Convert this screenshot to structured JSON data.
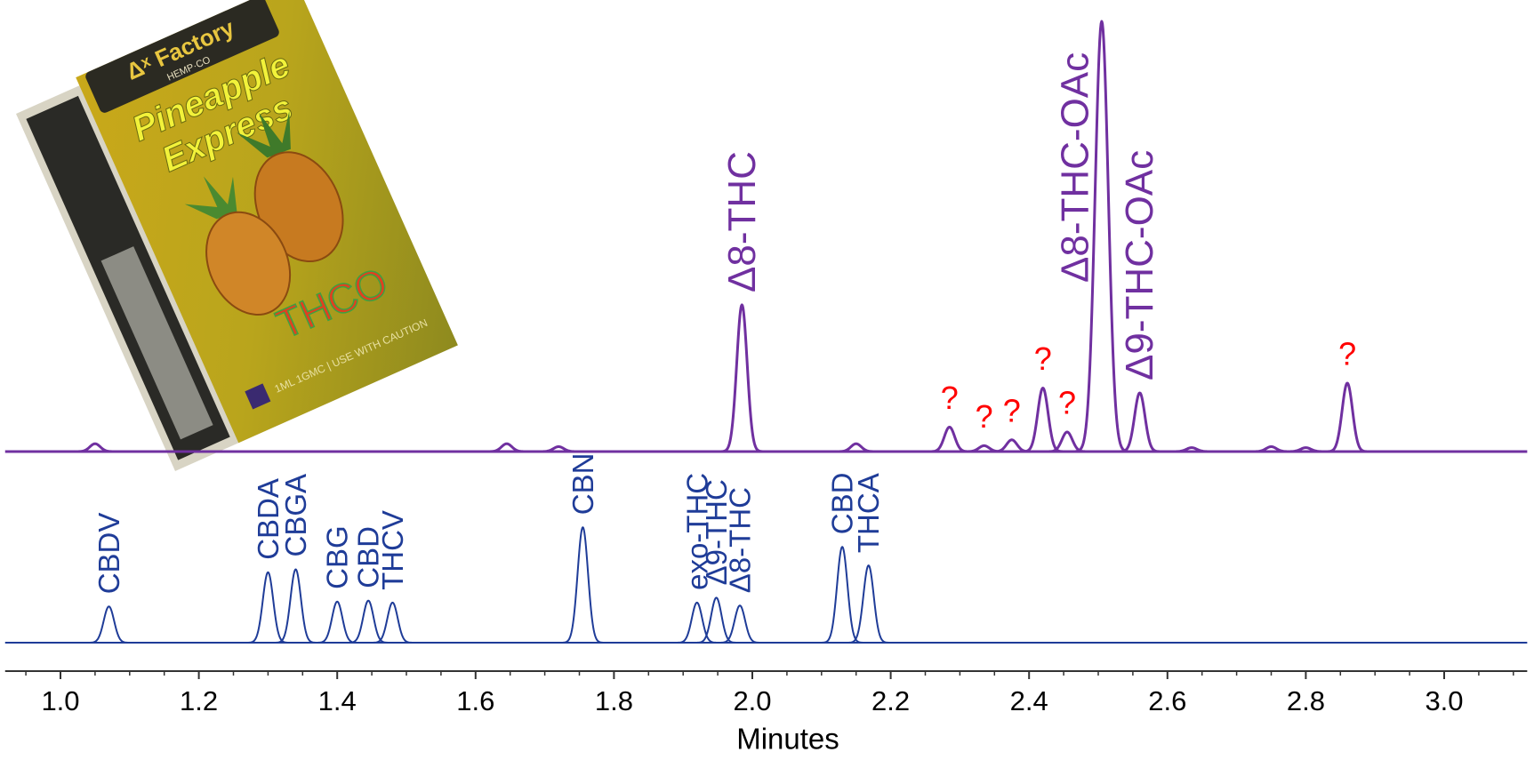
{
  "chart_data": {
    "type": "chromatogram",
    "x_label": "Minutes",
    "xlim": [
      0.92,
      3.12
    ],
    "xticks": [
      {
        "value": 1,
        "label": "1.0"
      },
      1.2,
      1.4,
      1.6,
      1.8,
      {
        "value": 2,
        "label": "2.0"
      },
      2.2,
      2.4,
      2.6,
      2.8,
      {
        "value": 3,
        "label": "3.0"
      }
    ],
    "xminorticks": [
      0.95,
      1.05,
      1.1,
      1.15,
      1.25,
      1.3,
      1.35,
      1.45,
      1.5,
      1.55,
      1.65,
      1.7,
      1.75,
      1.85,
      1.9,
      1.95,
      2.05,
      2.1,
      2.15,
      2.25,
      2.3,
      2.35,
      2.45,
      2.5,
      2.55,
      2.65,
      2.7,
      2.75,
      2.85,
      2.9,
      2.95,
      3.05,
      3.1
    ],
    "ylim": [
      0,
      450
    ],
    "series": [
      {
        "color": "#7030a0",
        "peaks": [
          {
            "x": 1.05,
            "height": 8,
            "label": null
          },
          {
            "x": 1.645,
            "height": 8,
            "label": null
          },
          {
            "x": 1.72,
            "height": 5,
            "label": null
          },
          {
            "x": 1.985,
            "height": 150,
            "label": "Δ8-THC"
          },
          {
            "x": 2.15,
            "height": 8,
            "label": null
          },
          {
            "x": 2.285,
            "height": 25,
            "label": "?",
            "label_color": "#ff0000"
          },
          {
            "x": 2.335,
            "height": 6,
            "label": "?",
            "label_color": "#ff0000"
          },
          {
            "x": 2.375,
            "height": 12,
            "label": "?",
            "label_color": "#ff0000"
          },
          {
            "x": 2.42,
            "height": 65,
            "label": "?",
            "label_color": "#ff0000"
          },
          {
            "x": 2.455,
            "height": 20,
            "label": "?",
            "label_color": "#ff0000"
          },
          {
            "x": 2.505,
            "height": 440,
            "label": "Δ8-THC-OAc"
          },
          {
            "x": 2.56,
            "height": 60,
            "label": "Δ9-THC-OAc"
          },
          {
            "x": 2.635,
            "height": 4,
            "label": null
          },
          {
            "x": 2.75,
            "height": 5,
            "label": null
          },
          {
            "x": 2.8,
            "height": 4,
            "label": null
          },
          {
            "x": 2.86,
            "height": 70,
            "label": "?",
            "label_color": "#ff0000"
          }
        ]
      },
      {
        "color": "#1f3c98",
        "peaks": [
          {
            "x": 1.07,
            "height": 37,
            "label": "CBDV"
          },
          {
            "x": 1.3,
            "height": 72,
            "label": "CBDA"
          },
          {
            "x": 1.34,
            "height": 75,
            "label": "CBGA"
          },
          {
            "x": 1.4,
            "height": 42,
            "label": "CBG"
          },
          {
            "x": 1.445,
            "height": 43,
            "label": "CBD"
          },
          {
            "x": 1.48,
            "height": 41,
            "label": "THCV"
          },
          {
            "x": 1.755,
            "height": 118,
            "label": "CBN"
          },
          {
            "x": 1.92,
            "height": 41,
            "label": "exo-THC"
          },
          {
            "x": 1.948,
            "height": 46,
            "label": "Δ9-THC"
          },
          {
            "x": 1.982,
            "height": 38,
            "label": "Δ8-THC"
          },
          {
            "x": 2.13,
            "height": 98,
            "label": "CBD"
          },
          {
            "x": 2.168,
            "height": 79,
            "label": "THCA"
          }
        ]
      }
    ]
  },
  "photo": {
    "brand": "Δˣ Factory",
    "maker": "HEMP·CO",
    "name_line1": "Pineapple",
    "name_line2": "Express",
    "product": "THCO",
    "fine_print": "1ML 1GMC | USE WITH CAUTION"
  }
}
